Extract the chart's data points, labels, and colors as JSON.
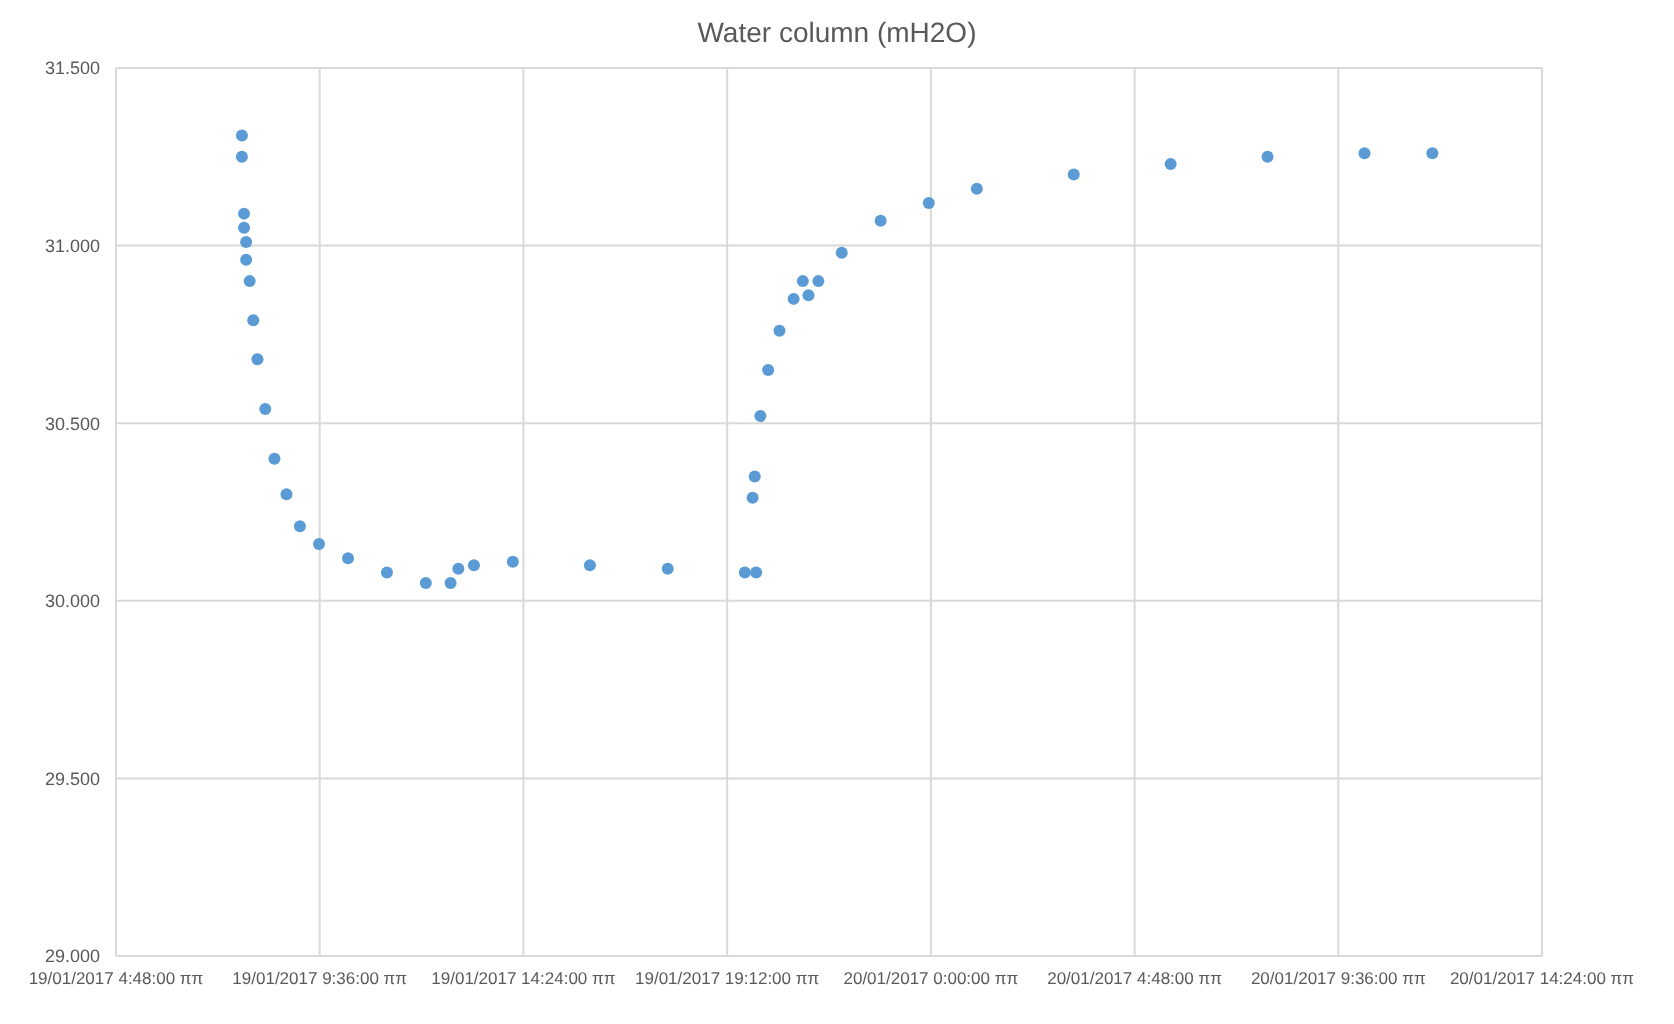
{
  "chart_data": {
    "type": "scatter",
    "title": "Water column (mH2O)",
    "x": [
      "2017-01-19T07:46",
      "2017-01-19T07:46",
      "2017-01-19T07:49",
      "2017-01-19T07:49",
      "2017-01-19T07:52",
      "2017-01-19T07:52",
      "2017-01-19T07:57",
      "2017-01-19T08:02",
      "2017-01-19T08:08",
      "2017-01-19T08:19",
      "2017-01-19T08:32",
      "2017-01-19T08:49",
      "2017-01-19T09:08",
      "2017-01-19T09:35",
      "2017-01-19T10:16",
      "2017-01-19T11:11",
      "2017-01-19T12:06",
      "2017-01-19T12:41",
      "2017-01-19T12:52",
      "2017-01-19T13:14",
      "2017-01-19T14:09",
      "2017-01-19T15:58",
      "2017-01-19T17:48",
      "2017-01-19T19:37",
      "2017-01-19T19:53",
      "2017-01-19T19:48",
      "2017-01-19T19:51",
      "2017-01-19T19:59",
      "2017-01-19T20:10",
      "2017-01-19T20:26",
      "2017-01-19T20:46",
      "2017-01-19T20:59",
      "2017-01-19T21:07",
      "2017-01-19T21:21",
      "2017-01-19T21:54",
      "2017-01-19T22:49",
      "2017-01-19T23:57",
      "2017-01-20T01:05",
      "2017-01-20T03:22",
      "2017-01-20T05:39",
      "2017-01-20T07:56",
      "2017-01-20T10:13",
      "2017-01-20T11:49"
    ],
    "series": [
      {
        "color": "#5b9bd5",
        "values": [
          31.31,
          31.25,
          31.09,
          31.05,
          31.01,
          30.96,
          30.9,
          30.79,
          30.68,
          30.54,
          30.4,
          30.3,
          30.21,
          30.16,
          30.12,
          30.08,
          30.05,
          30.05,
          30.09,
          30.1,
          30.11,
          30.1,
          30.09,
          30.08,
          30.08,
          30.29,
          30.35,
          30.52,
          30.65,
          30.76,
          30.85,
          30.9,
          30.86,
          30.9,
          30.98,
          31.07,
          31.12,
          31.16,
          31.2,
          31.23,
          31.25,
          31.26,
          31.26
        ]
      }
    ],
    "xlim": [
      "2017-01-19T04:48",
      "2017-01-20T14:24"
    ],
    "xticks": [
      {
        "value": "2017-01-19T04:48",
        "label": "19/01/2017 4:48:00 ππ"
      },
      {
        "value": "2017-01-19T09:36",
        "label": "19/01/2017 9:36:00 ππ"
      },
      {
        "value": "2017-01-19T14:24",
        "label": "19/01/2017 14:24:00 ππ"
      },
      {
        "value": "2017-01-19T19:12",
        "label": "19/01/2017 19:12:00 ππ"
      },
      {
        "value": "2017-01-20T00:00",
        "label": "20/01/2017 0:00:00 ππ"
      },
      {
        "value": "2017-01-20T04:48",
        "label": "20/01/2017 4:48:00 ππ"
      },
      {
        "value": "2017-01-20T09:36",
        "label": "20/01/2017 9:36:00 ππ"
      },
      {
        "value": "2017-01-20T14:24",
        "label": "20/01/2017 14:24:00 ππ"
      }
    ],
    "ylim": [
      29,
      31.5
    ],
    "yticks": [
      {
        "value": 29,
        "label": "29.000"
      },
      {
        "value": 29.5,
        "label": "29.500"
      },
      {
        "value": 30,
        "label": "30.000"
      },
      {
        "value": 30.5,
        "label": "30.500"
      },
      {
        "value": 31,
        "label": "31.000"
      },
      {
        "value": 31.5,
        "label": "31.500"
      }
    ],
    "grid": true,
    "marker": "circle"
  }
}
